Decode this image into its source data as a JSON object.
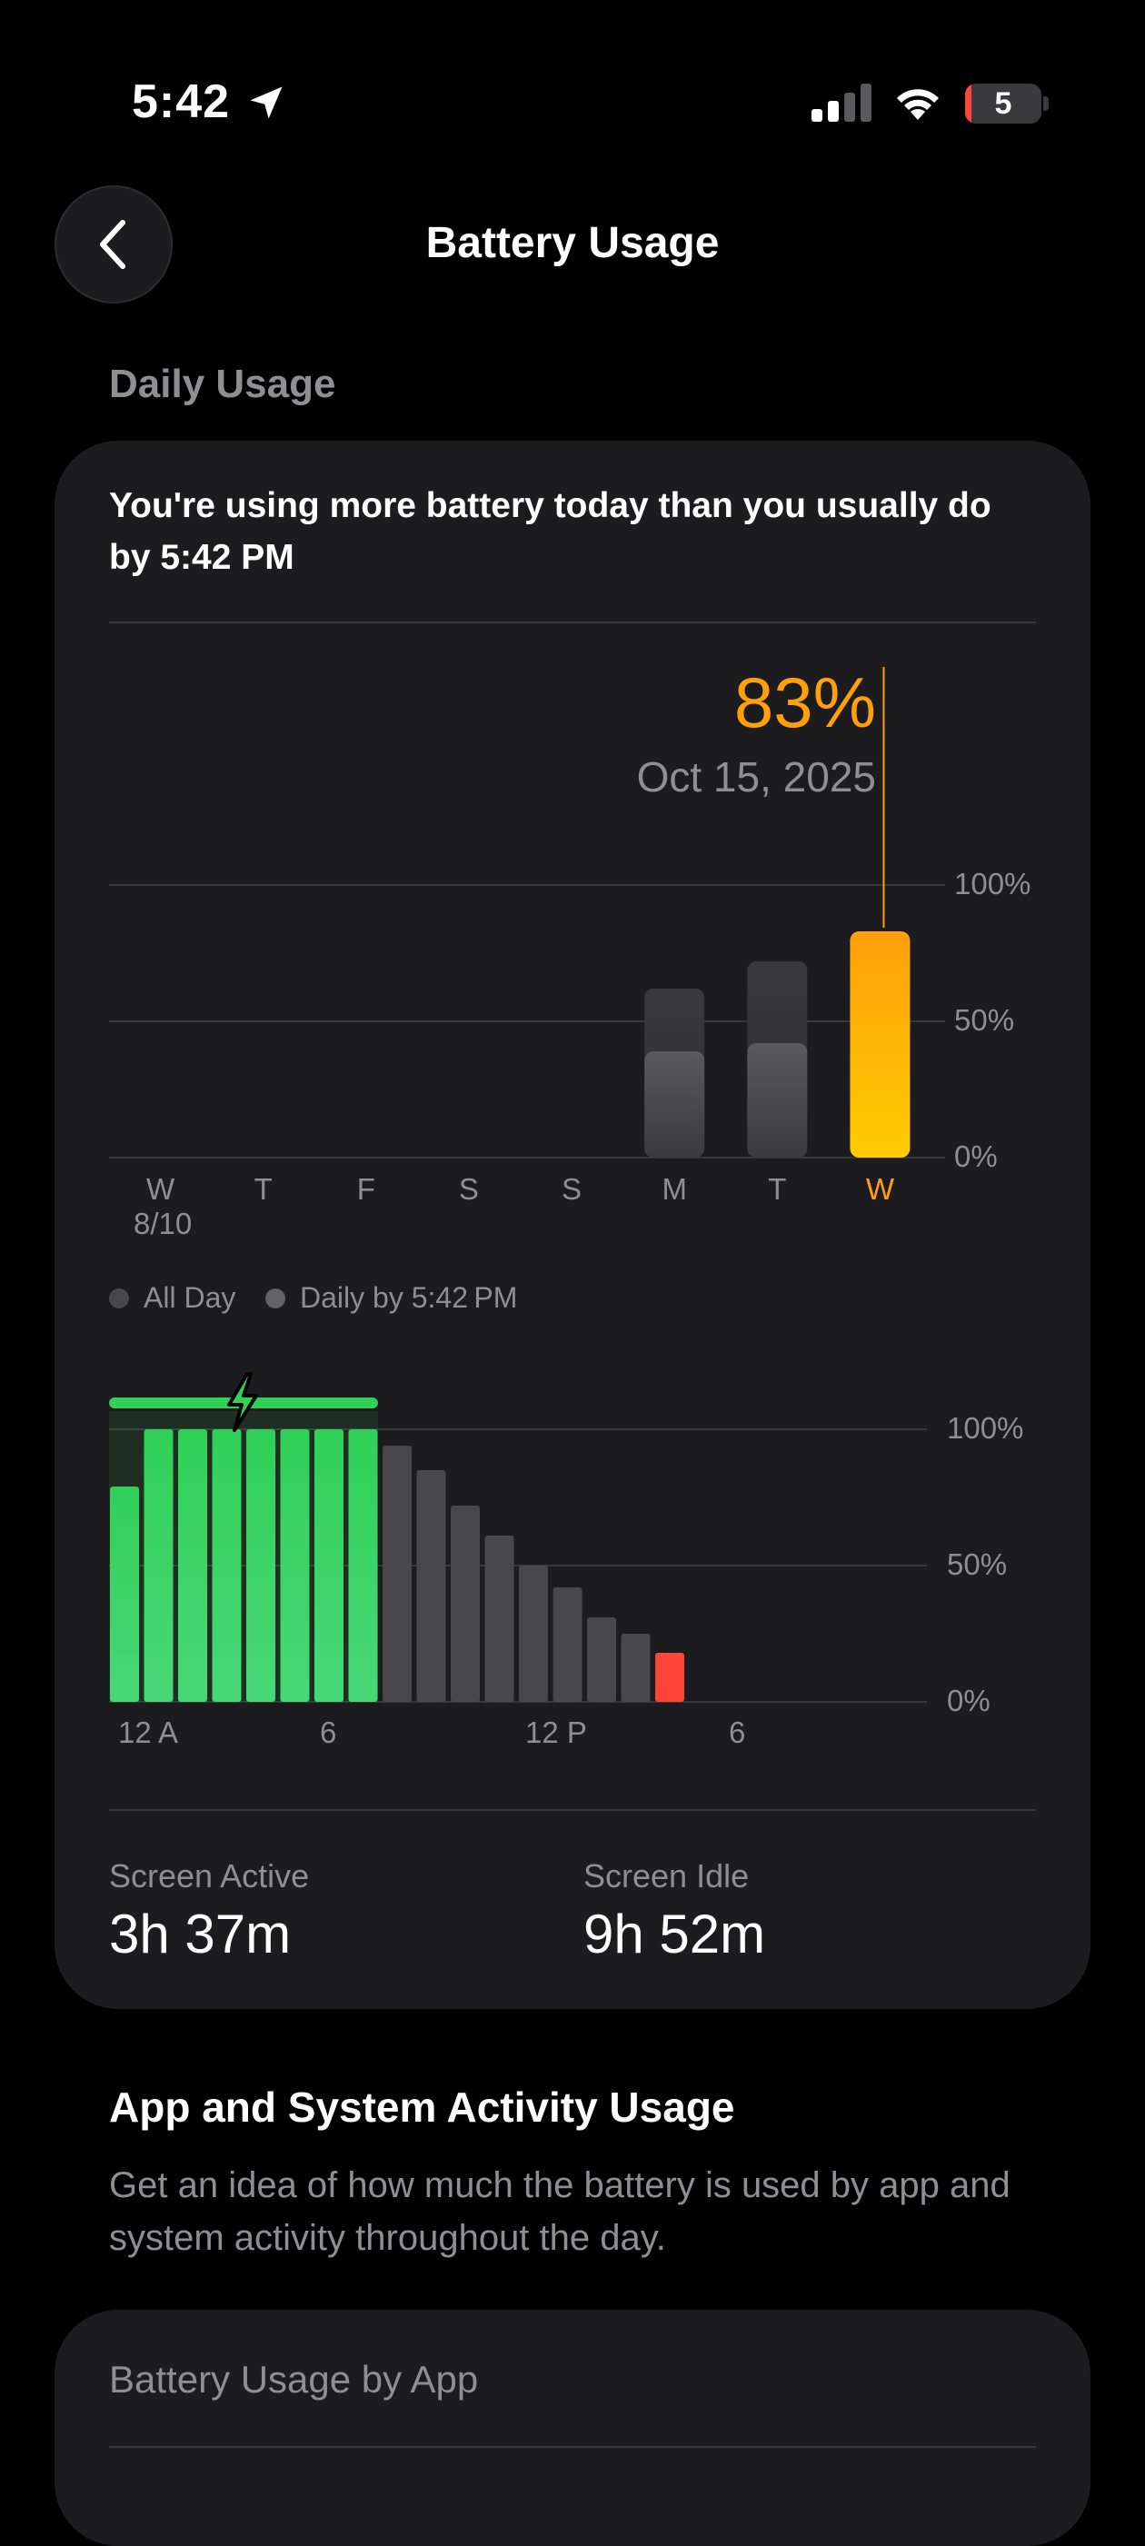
{
  "status_bar": {
    "time": "5:42",
    "battery_level": "5",
    "icons": [
      "location-arrow-icon",
      "cellular-signal-icon",
      "wifi-icon",
      "battery-icon"
    ]
  },
  "nav": {
    "title": "Battery Usage",
    "back_icon": "chevron-left-icon"
  },
  "daily_usage": {
    "section_label": "Daily Usage",
    "summary": "You're using more battery today than you usually do by 5:42 PM",
    "selected_value": "83%",
    "selected_date": "Oct 15, 2025",
    "legend": [
      {
        "label": "All Day",
        "color": "#48484a"
      },
      {
        "label": "Daily by 5:42 PM",
        "color": "#636366"
      }
    ]
  },
  "stats": {
    "screen_active_label": "Screen Active",
    "screen_active_value": "3h 37m",
    "screen_idle_label": "Screen Idle",
    "screen_idle_value": "9h 52m"
  },
  "activity": {
    "title": "App and System Activity Usage",
    "description": "Get an idea of how much the battery is used by app and system activity throughout the day."
  },
  "by_app": {
    "label": "Battery Usage by App"
  },
  "colors": {
    "accent_orange": "#ff9f0a",
    "green": "#30d158",
    "red": "#ff453a",
    "card": "#1c1c1e"
  },
  "chart_data": [
    {
      "type": "bar",
      "categories": [
        "W",
        "T",
        "F",
        "S",
        "S",
        "M",
        "T",
        "W"
      ],
      "first_date_label": "8/10",
      "y_ticks": [
        "100%",
        "50%",
        "0%"
      ],
      "ylim": [
        0,
        100
      ],
      "series": [
        {
          "name": "All Day",
          "values": [
            0,
            0,
            0,
            0,
            0,
            62,
            72,
            83
          ]
        },
        {
          "name": "Daily by 5:42 PM",
          "values": [
            0,
            0,
            0,
            0,
            0,
            39,
            42,
            83
          ]
        }
      ],
      "highlight_index": 7
    },
    {
      "type": "bar",
      "x_ticks": [
        "12 A",
        "6",
        "12 P",
        "6"
      ],
      "y_ticks": [
        "100%",
        "50%",
        "0%"
      ],
      "ylim": [
        0,
        100
      ],
      "values": [
        79,
        100,
        100,
        100,
        100,
        100,
        100,
        100,
        94,
        85,
        72,
        61,
        50,
        42,
        31,
        25,
        18
      ],
      "charging_hours": [
        0,
        8
      ],
      "bar_states": [
        "charging",
        "charging",
        "charging",
        "charging",
        "charging",
        "charging",
        "charging",
        "charging",
        "normal",
        "normal",
        "normal",
        "normal",
        "normal",
        "normal",
        "normal",
        "normal",
        "low"
      ]
    }
  ]
}
